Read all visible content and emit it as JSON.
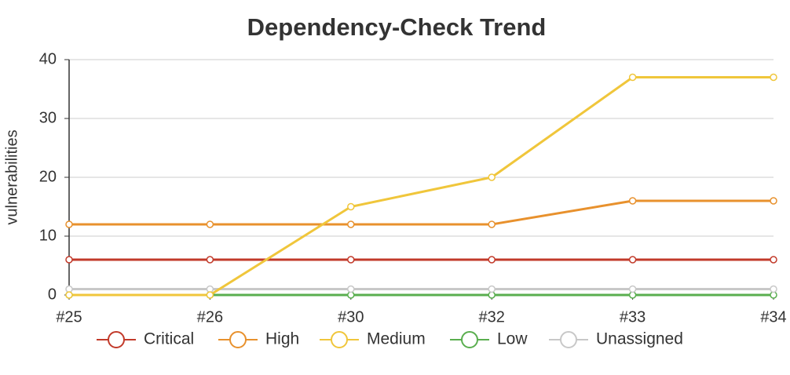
{
  "chart_data": {
    "type": "line",
    "title": "Dependency-Check Trend",
    "y_label": "vulnerabilities",
    "categories": [
      "#25",
      "#26",
      "#30",
      "#32",
      "#33",
      "#34"
    ],
    "series": [
      {
        "name": "Critical",
        "color": "#c23a2a",
        "values": [
          6,
          6,
          6,
          6,
          6,
          6
        ]
      },
      {
        "name": "High",
        "color": "#e8912d",
        "values": [
          12,
          12,
          12,
          12,
          16,
          16
        ]
      },
      {
        "name": "Medium",
        "color": "#f0c63b",
        "values": [
          0,
          0,
          15,
          20,
          37,
          37
        ]
      },
      {
        "name": "Low",
        "color": "#5aae4f",
        "values": [
          0,
          0,
          0,
          0,
          0,
          0
        ]
      },
      {
        "name": "Unassigned",
        "color": "#c8c8c8",
        "values": [
          1,
          1,
          1,
          1,
          1,
          1
        ]
      }
    ],
    "ylim": [
      0,
      40
    ],
    "yticks": [
      0,
      10,
      20,
      30,
      40
    ],
    "grid": true
  }
}
